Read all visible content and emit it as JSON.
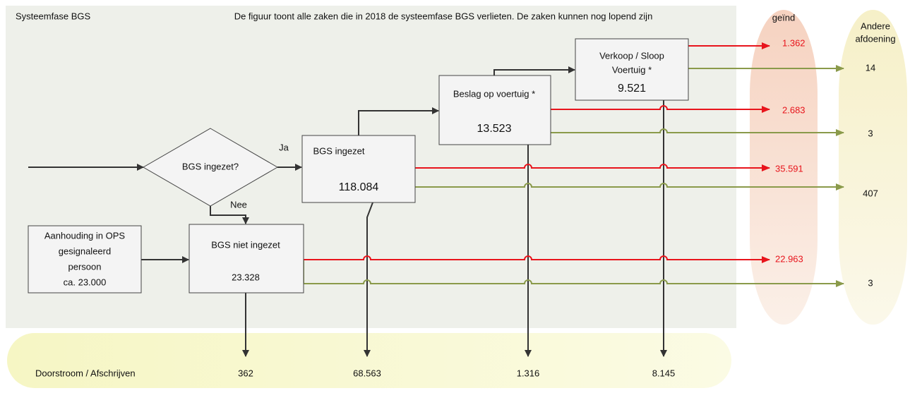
{
  "panel": {
    "title": "Systeemfase BGS",
    "caption": "De figuur toont alle zaken die in 2018 de systeemfase BGS verlieten. De zaken kunnen nog lopend zijn"
  },
  "columns": {
    "geind": "geïnd",
    "andere": [
      "Andere",
      "afdoening"
    ]
  },
  "decision": {
    "label": "BGS ingezet?",
    "yes": "Ja",
    "no": "Nee"
  },
  "boxes": {
    "aanhouding": {
      "lines": [
        "Aanhouding in OPS",
        "gesignaleerd",
        "persoon",
        "ca. 23.000"
      ]
    },
    "bgs_ingezet": {
      "label": "BGS ingezet",
      "value": "118.084"
    },
    "bgs_niet": {
      "label": "BGS niet ingezet",
      "value": "23.328"
    },
    "beslag": {
      "label": "Beslag op voertuig *",
      "value": "13.523"
    },
    "verkoop": {
      "lines": [
        "Verkoop / Sloop",
        "Voertuig *"
      ],
      "value": "9.521"
    }
  },
  "geind": [
    "1.362",
    "2.683",
    "35.591",
    "22.963"
  ],
  "andere": [
    "14",
    "3",
    "407",
    "3"
  ],
  "doorstroom": {
    "label": "Doorstroom / Afschrijven",
    "values": [
      "362",
      "68.563",
      "1.316",
      "8.145"
    ]
  }
}
